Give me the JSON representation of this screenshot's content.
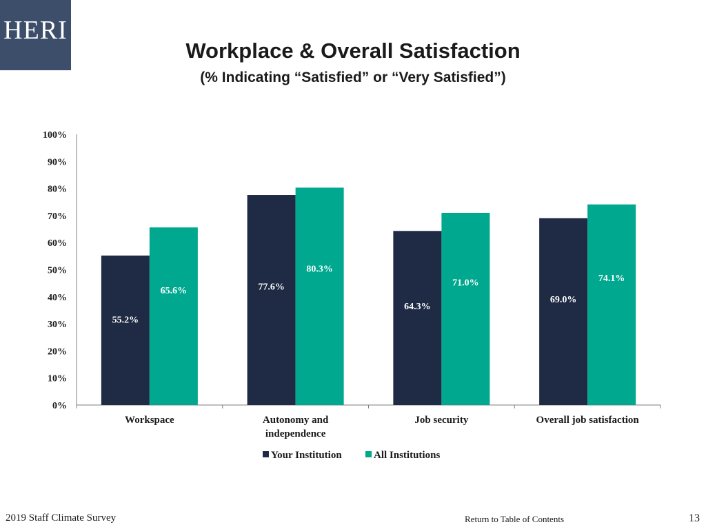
{
  "logo": {
    "text": "HERI"
  },
  "header": {
    "title": "Workplace & Overall Satisfaction",
    "subtitle": "(% Indicating “Satisfied” or “Very Satisfied”)"
  },
  "footer": {
    "survey_name": "2019 Staff Climate Survey",
    "toc_link": "Return to Table of Contents",
    "page_number": "13"
  },
  "colors": {
    "your_institution": "#1f2a44",
    "all_institutions": "#00a88f",
    "logo_bg": "#3d4e6b"
  },
  "chart_data": {
    "type": "bar",
    "title": "Workplace & Overall Satisfaction",
    "subtitle": "(% Indicating “Satisfied” or “Very Satisfied”)",
    "categories": [
      [
        "Workspace"
      ],
      [
        "Autonomy and",
        "independence"
      ],
      [
        "Job security"
      ],
      [
        "Overall job satisfaction"
      ]
    ],
    "series": [
      {
        "name": "Your Institution",
        "values": [
          55.2,
          77.6,
          64.3,
          69.0
        ],
        "labels": [
          "55.2%",
          "77.6%",
          "64.3%",
          "69.0%"
        ]
      },
      {
        "name": "All Institutions",
        "values": [
          65.6,
          80.3,
          71.0,
          74.1
        ],
        "labels": [
          "65.6%",
          "80.3%",
          "71.0%",
          "74.1%"
        ]
      }
    ],
    "yticks": [
      "0%",
      "10%",
      "20%",
      "30%",
      "40%",
      "50%",
      "60%",
      "70%",
      "80%",
      "90%",
      "100%"
    ],
    "ylim": [
      0,
      100
    ],
    "grid": false,
    "legend": "bottom"
  }
}
